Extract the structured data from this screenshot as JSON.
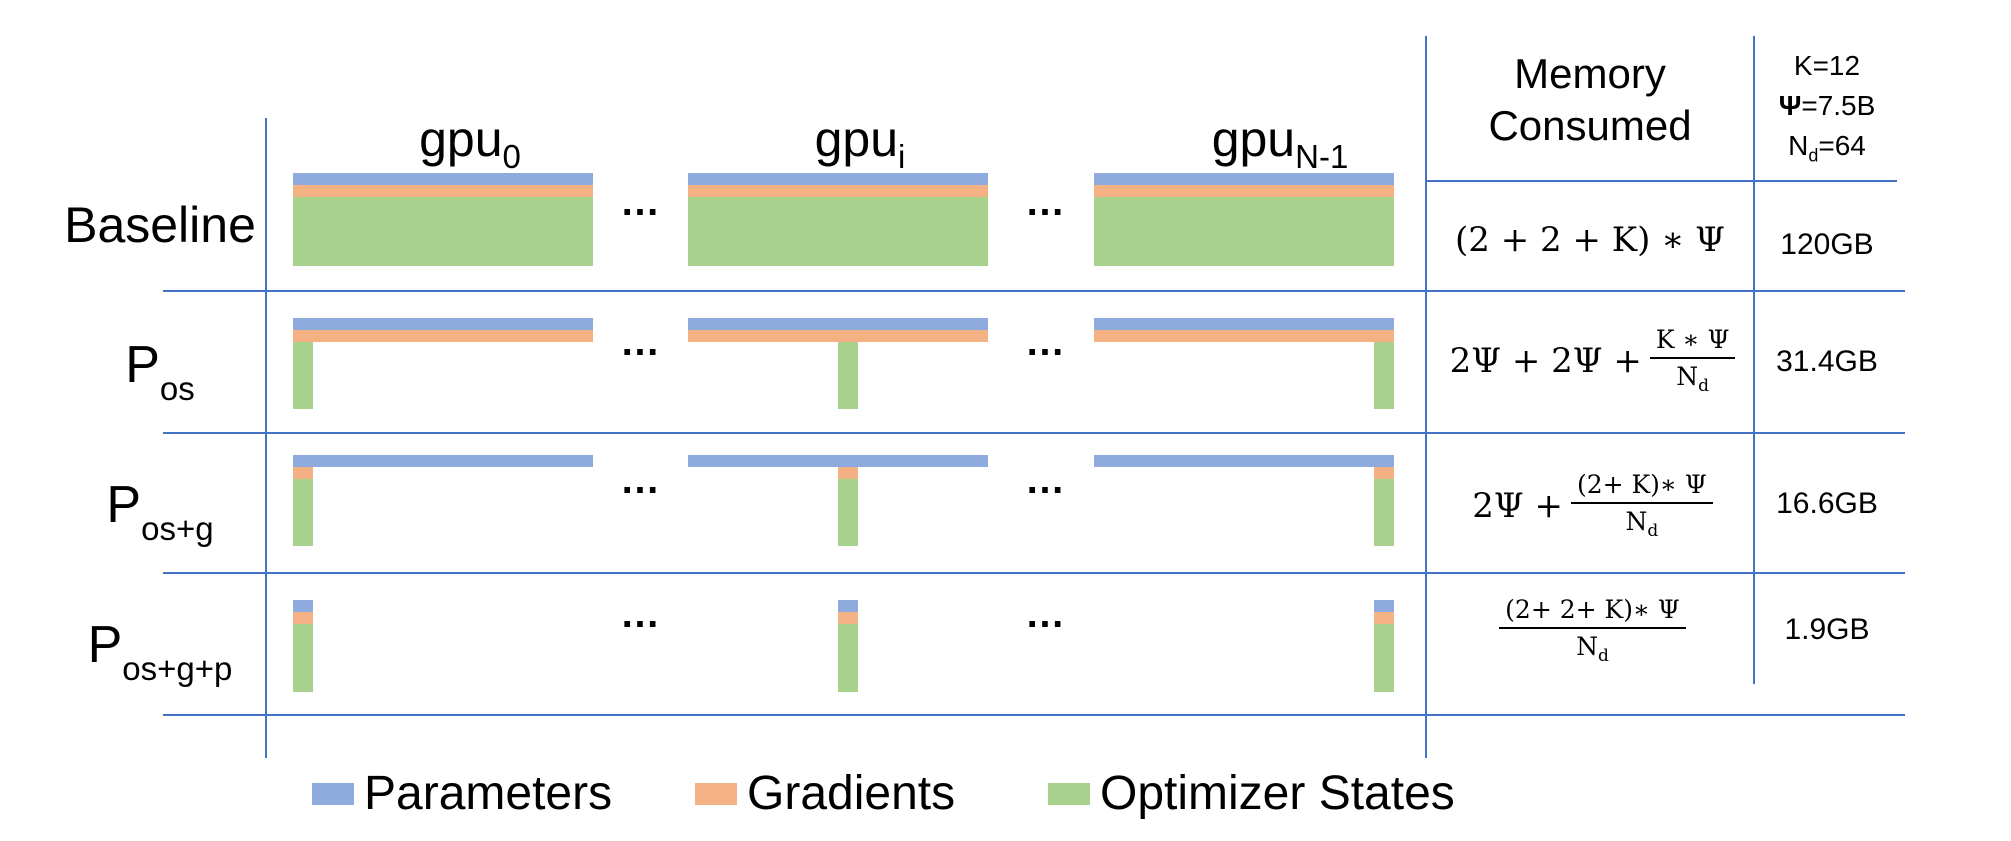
{
  "columns": {
    "gpu_first": {
      "base": "gpu",
      "sub": "0"
    },
    "gpu_mid": {
      "base": "gpu",
      "sub": "i"
    },
    "gpu_last": {
      "base": "gpu",
      "sub": "N-1"
    },
    "memory_header": "Memory Consumed",
    "config": {
      "k": "K=12",
      "psi": "=7.5B",
      "psi_symbol": "Ψ",
      "nd_base": "N",
      "nd_sub": "d",
      "nd_value": "=64"
    }
  },
  "dots": "…",
  "rows": [
    {
      "label": {
        "base": "Baseline",
        "sub": ""
      },
      "formula": {
        "text": "(2 + 2 + K) ∗ Ψ"
      },
      "memory": "120GB"
    },
    {
      "label": {
        "base": "P",
        "sub": "os"
      },
      "formula": {
        "prefix": "2Ψ + 2Ψ +",
        "num": "K ∗ Ψ",
        "den_base": "N",
        "den_sub": "d"
      },
      "memory": "31.4GB"
    },
    {
      "label": {
        "base": "P",
        "sub": "os+g"
      },
      "formula": {
        "prefix": "2Ψ +",
        "num": "(2+ K)∗ Ψ",
        "den_base": "N",
        "den_sub": "d"
      },
      "memory": "16.6GB"
    },
    {
      "label": {
        "base": "P",
        "sub": "os+g+p"
      },
      "formula": {
        "prefix": "",
        "num": "(2+ 2+ K)∗ Ψ",
        "den_base": "N",
        "den_sub": "d"
      },
      "memory": "1.9GB"
    }
  ],
  "legend": [
    {
      "label": "Parameters",
      "color": "#8faadc"
    },
    {
      "label": "Gradients",
      "color": "#f4b183"
    },
    {
      "label": "Optimizer States",
      "color": "#a9d18e"
    }
  ]
}
